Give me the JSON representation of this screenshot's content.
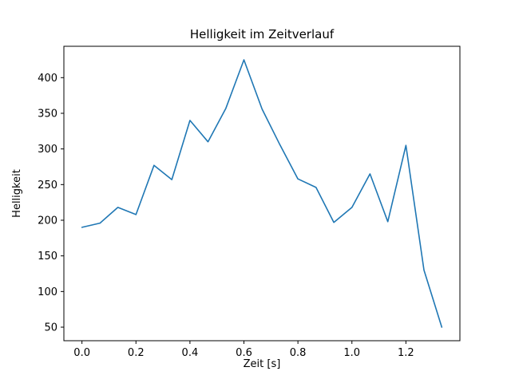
{
  "chart_data": {
    "type": "line",
    "title": "Helligkeit im Zeitverlauf",
    "xlabel": "Zeit [s]",
    "ylabel": "Helligkeit",
    "x": [
      0.0,
      0.067,
      0.133,
      0.2,
      0.267,
      0.333,
      0.4,
      0.467,
      0.533,
      0.6,
      0.667,
      0.733,
      0.8,
      0.867,
      0.933,
      1.0,
      1.067,
      1.133,
      1.2,
      1.267,
      1.333
    ],
    "y": [
      190,
      196,
      218,
      208,
      277,
      257,
      340,
      310,
      357,
      425,
      356,
      306,
      258,
      246,
      197,
      218,
      265,
      198,
      305,
      130,
      50
    ],
    "x_ticks": {
      "values": [
        0.0,
        0.2,
        0.4,
        0.6,
        0.8,
        1.0,
        1.2
      ],
      "labels": [
        "0.0",
        "0.2",
        "0.4",
        "0.6",
        "0.8",
        "1.0",
        "1.2"
      ]
    },
    "y_ticks": {
      "values": [
        50,
        100,
        150,
        200,
        250,
        300,
        350,
        400
      ],
      "labels": [
        "50",
        "100",
        "150",
        "200",
        "250",
        "300",
        "350",
        "400"
      ]
    },
    "xlim": [
      -0.067,
      1.4
    ],
    "ylim": [
      31,
      444
    ],
    "grid": false,
    "legend_position": "none",
    "colors": {
      "line": "#1f77b4",
      "axes": "#000000",
      "background": "#ffffff"
    }
  }
}
